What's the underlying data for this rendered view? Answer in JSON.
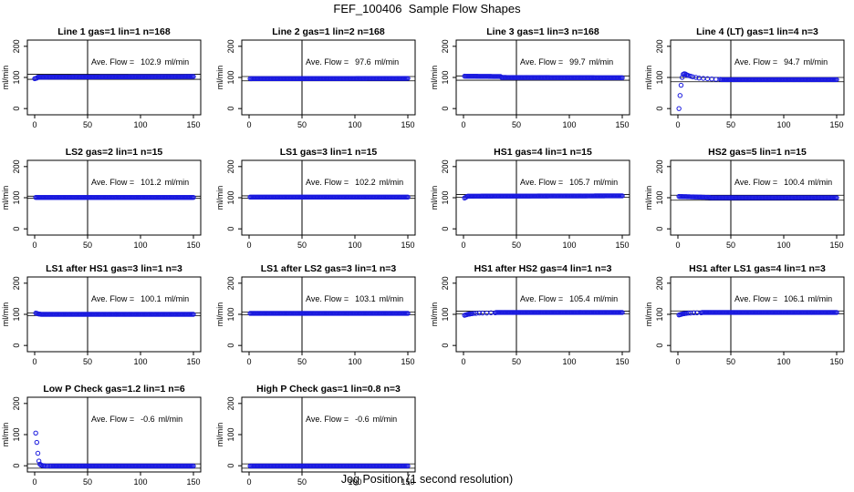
{
  "figure": {
    "title": "FEF_100406  Sample Flow Shapes",
    "xlabel": "Jog Position (1 second resolution)"
  },
  "chart_data": [
    {
      "type": "scatter",
      "title": "Line 1 gas=1 lin=1 n=168",
      "ylabel": "ml/min",
      "xlim": [
        0,
        150
      ],
      "ylim": [
        -20,
        220
      ],
      "xticks": [
        0,
        50,
        100,
        150
      ],
      "yticks": [
        0,
        100,
        200
      ],
      "vline": 50,
      "hlines": [
        94,
        110
      ],
      "annotation_label": "Ave. Flow =",
      "annotation_value": "102.9",
      "annotation_unit": "ml/min",
      "point_color": "#1a1adf",
      "series": [
        {
          "segments": [
            {
              "x": [
                0,
                1,
                2
              ],
              "y": [
                96,
                97,
                98
              ]
            },
            {
              "x_from": 3,
              "x_to": 150,
              "y_start": 101,
              "y_end": 103
            }
          ]
        }
      ]
    },
    {
      "type": "scatter",
      "title": "Line 2 gas=1 lin=2 n=168",
      "ylabel": "ml/min",
      "xlim": [
        0,
        150
      ],
      "ylim": [
        -20,
        220
      ],
      "xticks": [
        0,
        50,
        100,
        150
      ],
      "yticks": [
        0,
        100,
        200
      ],
      "vline": 50,
      "hlines": [
        89,
        103
      ],
      "annotation_label": "Ave. Flow =",
      "annotation_value": "97.6",
      "annotation_unit": "ml/min",
      "point_color": "#1a1adf",
      "series": [
        {
          "segments": [
            {
              "x_from": 1,
              "x_to": 150,
              "y_start": 96,
              "y_end": 97
            }
          ]
        }
      ]
    },
    {
      "type": "scatter",
      "title": "Line 3 gas=1 lin=3 n=168",
      "ylabel": "ml/min",
      "xlim": [
        0,
        150
      ],
      "ylim": [
        -20,
        220
      ],
      "xticks": [
        0,
        50,
        100,
        150
      ],
      "yticks": [
        0,
        100,
        200
      ],
      "vline": 50,
      "hlines": [
        91,
        105
      ],
      "annotation_label": "Ave. Flow =",
      "annotation_value": "99.7",
      "annotation_unit": "ml/min",
      "point_color": "#1a1adf",
      "series": [
        {
          "segments": [
            {
              "x_from": 1,
              "x_to": 35,
              "y_start": 104,
              "y_end": 103
            },
            {
              "x_from": 36,
              "x_to": 150,
              "y_start": 100,
              "y_end": 99
            }
          ]
        }
      ]
    },
    {
      "type": "scatter",
      "title": "Line 4 (LT) gas=1 lin=4 n=3",
      "ylabel": "ml/min",
      "xlim": [
        0,
        150
      ],
      "ylim": [
        -20,
        220
      ],
      "xticks": [
        0,
        50,
        100,
        150
      ],
      "yticks": [
        0,
        100,
        200
      ],
      "vline": 50,
      "hlines": [
        86,
        100
      ],
      "annotation_label": "Ave. Flow =",
      "annotation_value": "94.7",
      "annotation_unit": "ml/min",
      "point_color": "#1a1adf",
      "series": [
        {
          "segments": [
            {
              "x": [
                1,
                2,
                3,
                4,
                5,
                6,
                7,
                8,
                9,
                10,
                12,
                14,
                17,
                20,
                24,
                28,
                32,
                36,
                40
              ],
              "y": [
                0,
                42,
                75,
                100,
                110,
                112,
                111,
                109,
                107,
                106,
                104,
                102,
                100,
                98,
                97,
                96,
                95,
                94,
                94
              ]
            },
            {
              "x_from": 41,
              "x_to": 150,
              "y_start": 93,
              "y_end": 93
            }
          ]
        }
      ]
    },
    {
      "type": "scatter",
      "title": "LS2 gas=2 lin=1 n=15",
      "ylabel": "ml/min",
      "xlim": [
        0,
        150
      ],
      "ylim": [
        -20,
        220
      ],
      "xticks": [
        0,
        50,
        100,
        150
      ],
      "yticks": [
        0,
        100,
        200
      ],
      "vline": 50,
      "hlines": [
        98,
        105
      ],
      "annotation_label": "Ave. Flow =",
      "annotation_value": "101.2",
      "annotation_unit": "ml/min",
      "point_color": "#1a1adf",
      "series": [
        {
          "segments": [
            {
              "x_from": 1,
              "x_to": 150,
              "y_start": 101,
              "y_end": 101
            }
          ]
        }
      ]
    },
    {
      "type": "scatter",
      "title": "LS1 gas=3 lin=1 n=15",
      "ylabel": "ml/min",
      "xlim": [
        0,
        150
      ],
      "ylim": [
        -20,
        220
      ],
      "xticks": [
        0,
        50,
        100,
        150
      ],
      "yticks": [
        0,
        100,
        200
      ],
      "vline": 50,
      "hlines": [
        98,
        106
      ],
      "annotation_label": "Ave. Flow =",
      "annotation_value": "102.2",
      "annotation_unit": "ml/min",
      "point_color": "#1a1adf",
      "series": [
        {
          "segments": [
            {
              "x_from": 1,
              "x_to": 150,
              "y_start": 102,
              "y_end": 102
            }
          ]
        }
      ]
    },
    {
      "type": "scatter",
      "title": "HS1 gas=4 lin=1 n=15",
      "ylabel": "ml/min",
      "xlim": [
        0,
        150
      ],
      "ylim": [
        -20,
        220
      ],
      "xticks": [
        0,
        50,
        100,
        150
      ],
      "yticks": [
        0,
        100,
        200
      ],
      "vline": 50,
      "hlines": [
        101,
        110
      ],
      "annotation_label": "Ave. Flow =",
      "annotation_value": "105.7",
      "annotation_unit": "ml/min",
      "point_color": "#1a1adf",
      "series": [
        {
          "segments": [
            {
              "x": [
                1,
                2,
                3
              ],
              "y": [
                99,
                101,
                103
              ]
            },
            {
              "x_from": 4,
              "x_to": 150,
              "y_start": 105,
              "y_end": 106
            }
          ]
        }
      ]
    },
    {
      "type": "scatter",
      "title": "HS2 gas=5 lin=1 n=15",
      "ylabel": "ml/min",
      "xlim": [
        0,
        150
      ],
      "ylim": [
        -20,
        220
      ],
      "xticks": [
        0,
        50,
        100,
        150
      ],
      "yticks": [
        0,
        100,
        200
      ],
      "vline": 50,
      "hlines": [
        92,
        108
      ],
      "annotation_label": "Ave. Flow =",
      "annotation_value": "100.4",
      "annotation_unit": "ml/min",
      "point_color": "#1a1adf",
      "series": [
        {
          "segments": [
            {
              "x_from": 1,
              "x_to": 30,
              "y_start": 104,
              "y_end": 101
            },
            {
              "x_from": 31,
              "x_to": 150,
              "y_start": 100,
              "y_end": 100
            }
          ]
        }
      ]
    },
    {
      "type": "scatter",
      "title": "LS1 after HS1 gas=3 lin=1 n=3",
      "ylabel": "ml/min",
      "xlim": [
        0,
        150
      ],
      "ylim": [
        -20,
        220
      ],
      "xticks": [
        0,
        50,
        100,
        150
      ],
      "yticks": [
        0,
        100,
        200
      ],
      "vline": 50,
      "hlines": [
        96,
        104
      ],
      "annotation_label": "Ave. Flow =",
      "annotation_value": "100.1",
      "annotation_unit": "ml/min",
      "point_color": "#1a1adf",
      "series": [
        {
          "segments": [
            {
              "x": [
                1,
                2,
                3,
                4,
                5,
                6
              ],
              "y": [
                104,
                103,
                102,
                101,
                101,
                100
              ]
            },
            {
              "x_from": 7,
              "x_to": 150,
              "y_start": 100,
              "y_end": 100
            }
          ]
        }
      ]
    },
    {
      "type": "scatter",
      "title": "LS1 after LS2 gas=3 lin=1 n=3",
      "ylabel": "ml/min",
      "xlim": [
        0,
        150
      ],
      "ylim": [
        -20,
        220
      ],
      "xticks": [
        0,
        50,
        100,
        150
      ],
      "yticks": [
        0,
        100,
        200
      ],
      "vline": 50,
      "hlines": [
        99,
        107
      ],
      "annotation_label": "Ave. Flow =",
      "annotation_value": "103.1",
      "annotation_unit": "ml/min",
      "point_color": "#1a1adf",
      "series": [
        {
          "segments": [
            {
              "x_from": 1,
              "x_to": 150,
              "y_start": 103,
              "y_end": 103
            }
          ]
        }
      ]
    },
    {
      "type": "scatter",
      "title": "HS1 after HS2 gas=4 lin=1 n=3",
      "ylabel": "ml/min",
      "xlim": [
        0,
        150
      ],
      "ylim": [
        -20,
        220
      ],
      "xticks": [
        0,
        50,
        100,
        150
      ],
      "yticks": [
        0,
        100,
        200
      ],
      "vline": 50,
      "hlines": [
        101,
        110
      ],
      "annotation_label": "Ave. Flow =",
      "annotation_value": "105.4",
      "annotation_unit": "ml/min",
      "point_color": "#1a1adf",
      "series": [
        {
          "segments": [
            {
              "x": [
                1,
                2,
                3,
                4,
                5,
                6,
                7,
                8,
                10,
                12,
                15,
                18,
                22,
                26,
                30
              ],
              "y": [
                97,
                98,
                99,
                100,
                101,
                101,
                102,
                102,
                103,
                103,
                104,
                104,
                104,
                105,
                105
              ]
            },
            {
              "x_from": 31,
              "x_to": 150,
              "y_start": 106,
              "y_end": 106
            }
          ]
        }
      ]
    },
    {
      "type": "scatter",
      "title": "HS1 after LS1 gas=4 lin=1 n=3",
      "ylabel": "ml/min",
      "xlim": [
        0,
        150
      ],
      "ylim": [
        -20,
        220
      ],
      "xticks": [
        0,
        50,
        100,
        150
      ],
      "yticks": [
        0,
        100,
        200
      ],
      "vline": 50,
      "hlines": [
        102,
        111
      ],
      "annotation_label": "Ave. Flow =",
      "annotation_value": "106.1",
      "annotation_unit": "ml/min",
      "point_color": "#1a1adf",
      "series": [
        {
          "segments": [
            {
              "x": [
                1,
                2,
                3,
                4,
                5,
                6,
                7,
                8,
                10,
                12,
                15,
                18,
                22
              ],
              "y": [
                98,
                99,
                100,
                101,
                102,
                102,
                103,
                103,
                104,
                104,
                105,
                105,
                105
              ]
            },
            {
              "x_from": 23,
              "x_to": 150,
              "y_start": 106,
              "y_end": 106
            }
          ]
        }
      ]
    },
    {
      "type": "scatter",
      "title": "Low P Check gas=1.2 lin=1 n=6",
      "ylabel": "ml/min",
      "xlim": [
        0,
        150
      ],
      "ylim": [
        -20,
        220
      ],
      "xticks": [
        0,
        50,
        100,
        150
      ],
      "yticks": [
        0,
        100,
        200
      ],
      "vline": 50,
      "hlines": [
        -8,
        6
      ],
      "annotation_label": "Ave. Flow =",
      "annotation_value": "-0.6",
      "annotation_unit": "ml/min",
      "point_color": "#1a1adf",
      "series": [
        {
          "segments": [
            {
              "x": [
                1,
                2,
                3,
                4,
                5,
                6,
                7,
                8,
                9,
                10,
                12,
                14
              ],
              "y": [
                105,
                75,
                40,
                15,
                5,
                2,
                1,
                0,
                0,
                -1,
                -1,
                -1
              ]
            },
            {
              "x_from": 15,
              "x_to": 150,
              "y_start": -1,
              "y_end": -1
            }
          ]
        }
      ]
    },
    {
      "type": "scatter",
      "title": "High P Check gas=1 lin=0.8 n=3",
      "ylabel": "ml/min",
      "xlim": [
        0,
        150
      ],
      "ylim": [
        -20,
        220
      ],
      "xticks": [
        0,
        50,
        100,
        150
      ],
      "yticks": [
        0,
        100,
        200
      ],
      "vline": 50,
      "hlines": [
        -8,
        6
      ],
      "annotation_label": "Ave. Flow =",
      "annotation_value": "-0.6",
      "annotation_unit": "ml/min",
      "point_color": "#1a1adf",
      "series": [
        {
          "segments": [
            {
              "x_from": 1,
              "x_to": 150,
              "y_start": -1,
              "y_end": -1
            }
          ]
        }
      ]
    }
  ]
}
